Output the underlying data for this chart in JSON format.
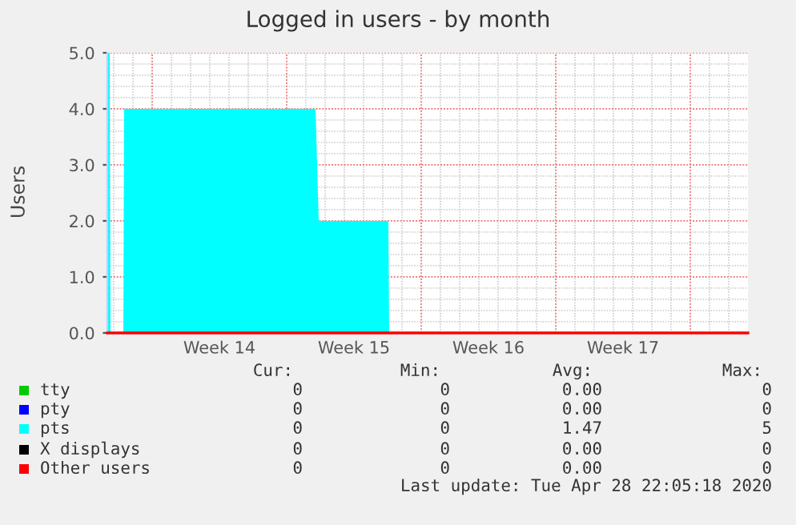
{
  "chart_data": {
    "type": "area",
    "title": "Logged in users - by month",
    "ylabel": "Users",
    "xlim": [
      "2020-03-27T16:00",
      "2020-04-30T00:00"
    ],
    "ylim": [
      0,
      5
    ],
    "xticks": [
      {
        "value": "2020-03-30T00:00",
        "label": null
      },
      {
        "value": "2020-04-02T12:00",
        "label": "Week 14"
      },
      {
        "value": "2020-04-06T00:00",
        "label": null
      },
      {
        "value": "2020-04-09T12:00",
        "label": "Week 15"
      },
      {
        "value": "2020-04-13T00:00",
        "label": null
      },
      {
        "value": "2020-04-16T12:00",
        "label": "Week 16"
      },
      {
        "value": "2020-04-20T00:00",
        "label": null
      },
      {
        "value": "2020-04-23T12:00",
        "label": "Week 17"
      },
      {
        "value": "2020-04-27T00:00",
        "label": null
      }
    ],
    "yticks": [
      {
        "value": 0,
        "label": "0.0"
      },
      {
        "value": 1,
        "label": "1.0"
      },
      {
        "value": 2,
        "label": "2.0"
      },
      {
        "value": 3,
        "label": "3.0"
      },
      {
        "value": 4,
        "label": "4.0"
      },
      {
        "value": 5,
        "label": "5.0"
      }
    ],
    "grid": true,
    "legend": "bottom",
    "series": [
      {
        "name": "tty",
        "color": "#00cc00",
        "type": "line"
      },
      {
        "name": "pty",
        "color": "#0000ff",
        "type": "line"
      },
      {
        "name": "pts",
        "color": "#00ffff",
        "x": [
          "2020-03-27T16:00",
          "2020-03-27T19:00",
          "2020-03-27T20:00",
          "2020-03-28T12:00",
          "2020-03-28T13:00",
          "2020-04-07T12:00",
          "2020-04-07T16:00",
          "2020-04-11T07:00",
          "2020-04-11T08:00",
          "2020-04-30T00:00"
        ],
        "values": [
          5,
          5,
          0,
          0,
          4,
          4,
          2,
          2,
          0,
          0
        ]
      },
      {
        "name": "X displays",
        "color": "#000000",
        "type": "line"
      },
      {
        "name": "Other users",
        "color": "#ff0000",
        "type": "line",
        "x": [
          "2020-03-27T16:00",
          "2020-04-30T00:00"
        ],
        "values": [
          0,
          0
        ]
      }
    ],
    "annotations": [
      "Cur:",
      "Min:",
      "Avg:",
      "Max:",
      "0",
      "0",
      "0.00",
      "0",
      "0",
      "0",
      "0.00",
      "0",
      "0",
      "0",
      "1.47",
      "5",
      "0",
      "0",
      "0.00",
      "0",
      "0",
      "0",
      "0.00",
      "0",
      "Last update: Tue Apr 28 22:05:18 2020"
    ]
  }
}
